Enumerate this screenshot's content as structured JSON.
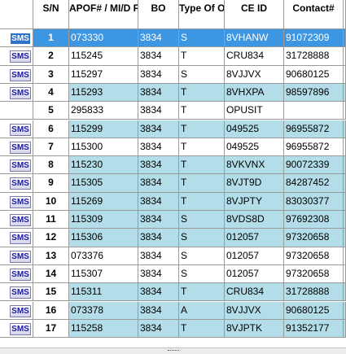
{
  "headers": {
    "sms": "",
    "sn": "S/N",
    "apof": "APOF# / MI/D Form",
    "bo": "BO",
    "type": "Type Of Order",
    "ceid": "CE ID",
    "contact": "Contact#"
  },
  "sms_label": "SMS",
  "colors": {
    "selected": "#3d96e2",
    "teal": "#b3dde8",
    "white": "#ffffff"
  },
  "rows": [
    {
      "sn": "1",
      "apof": "073330",
      "bo": "3834",
      "type": "S",
      "ceid": "8VHANW",
      "contact": "91072309",
      "style": "sel",
      "sms": true
    },
    {
      "sn": "2",
      "apof": "115245",
      "bo": "3834",
      "type": "T",
      "ceid": "CRU834",
      "contact": "31728888",
      "style": "white",
      "sms": true
    },
    {
      "sn": "3",
      "apof": "115297",
      "bo": "3834",
      "type": "S",
      "ceid": "8VJJVX",
      "contact": "90680125",
      "style": "white",
      "sms": true
    },
    {
      "sn": "4",
      "apof": "115293",
      "bo": "3834",
      "type": "T",
      "ceid": "8VHXPA",
      "contact": "98597896",
      "style": "teal",
      "sms": true
    },
    {
      "sn": "5",
      "apof": "295833",
      "bo": "3834",
      "type": "T",
      "ceid": "OPUSIT",
      "contact": "",
      "style": "white",
      "sms": false
    },
    {
      "sn": "6",
      "apof": "115299",
      "bo": "3834",
      "type": "T",
      "ceid": "049525",
      "contact": "96955872",
      "style": "teal",
      "sms": true
    },
    {
      "sn": "7",
      "apof": "115300",
      "bo": "3834",
      "type": "T",
      "ceid": "049525",
      "contact": "96955872",
      "style": "white",
      "sms": true
    },
    {
      "sn": "8",
      "apof": "115230",
      "bo": "3834",
      "type": "T",
      "ceid": "8VKVNX",
      "contact": "90072339",
      "style": "teal",
      "sms": true
    },
    {
      "sn": "9",
      "apof": "115305",
      "bo": "3834",
      "type": "T",
      "ceid": "8VJT9D",
      "contact": "84287452",
      "style": "teal",
      "sms": true
    },
    {
      "sn": "10",
      "apof": "115269",
      "bo": "3834",
      "type": "T",
      "ceid": "8VJPTY",
      "contact": "83030377",
      "style": "teal",
      "sms": true
    },
    {
      "sn": "11",
      "apof": "115309",
      "bo": "3834",
      "type": "S",
      "ceid": "8VDS8D",
      "contact": "97692308",
      "style": "teal",
      "sms": true
    },
    {
      "sn": "12",
      "apof": "115306",
      "bo": "3834",
      "type": "S",
      "ceid": "012057",
      "contact": "97320658",
      "style": "teal",
      "sms": true
    },
    {
      "sn": "13",
      "apof": "073376",
      "bo": "3834",
      "type": "S",
      "ceid": "012057",
      "contact": "97320658",
      "style": "white",
      "sms": true
    },
    {
      "sn": "14",
      "apof": "115307",
      "bo": "3834",
      "type": "S",
      "ceid": "012057",
      "contact": "97320658",
      "style": "white",
      "sms": true
    },
    {
      "sn": "15",
      "apof": "115311",
      "bo": "3834",
      "type": "T",
      "ceid": "CRU834",
      "contact": "31728888",
      "style": "teal",
      "sms": true
    },
    {
      "sn": "16",
      "apof": "073378",
      "bo": "3834",
      "type": "A",
      "ceid": "8VJJVX",
      "contact": "90680125",
      "style": "teal",
      "sms": true
    },
    {
      "sn": "17",
      "apof": "115258",
      "bo": "3834",
      "type": "T",
      "ceid": "8VJPTK",
      "contact": "91352177",
      "style": "teal",
      "sms": true
    }
  ]
}
